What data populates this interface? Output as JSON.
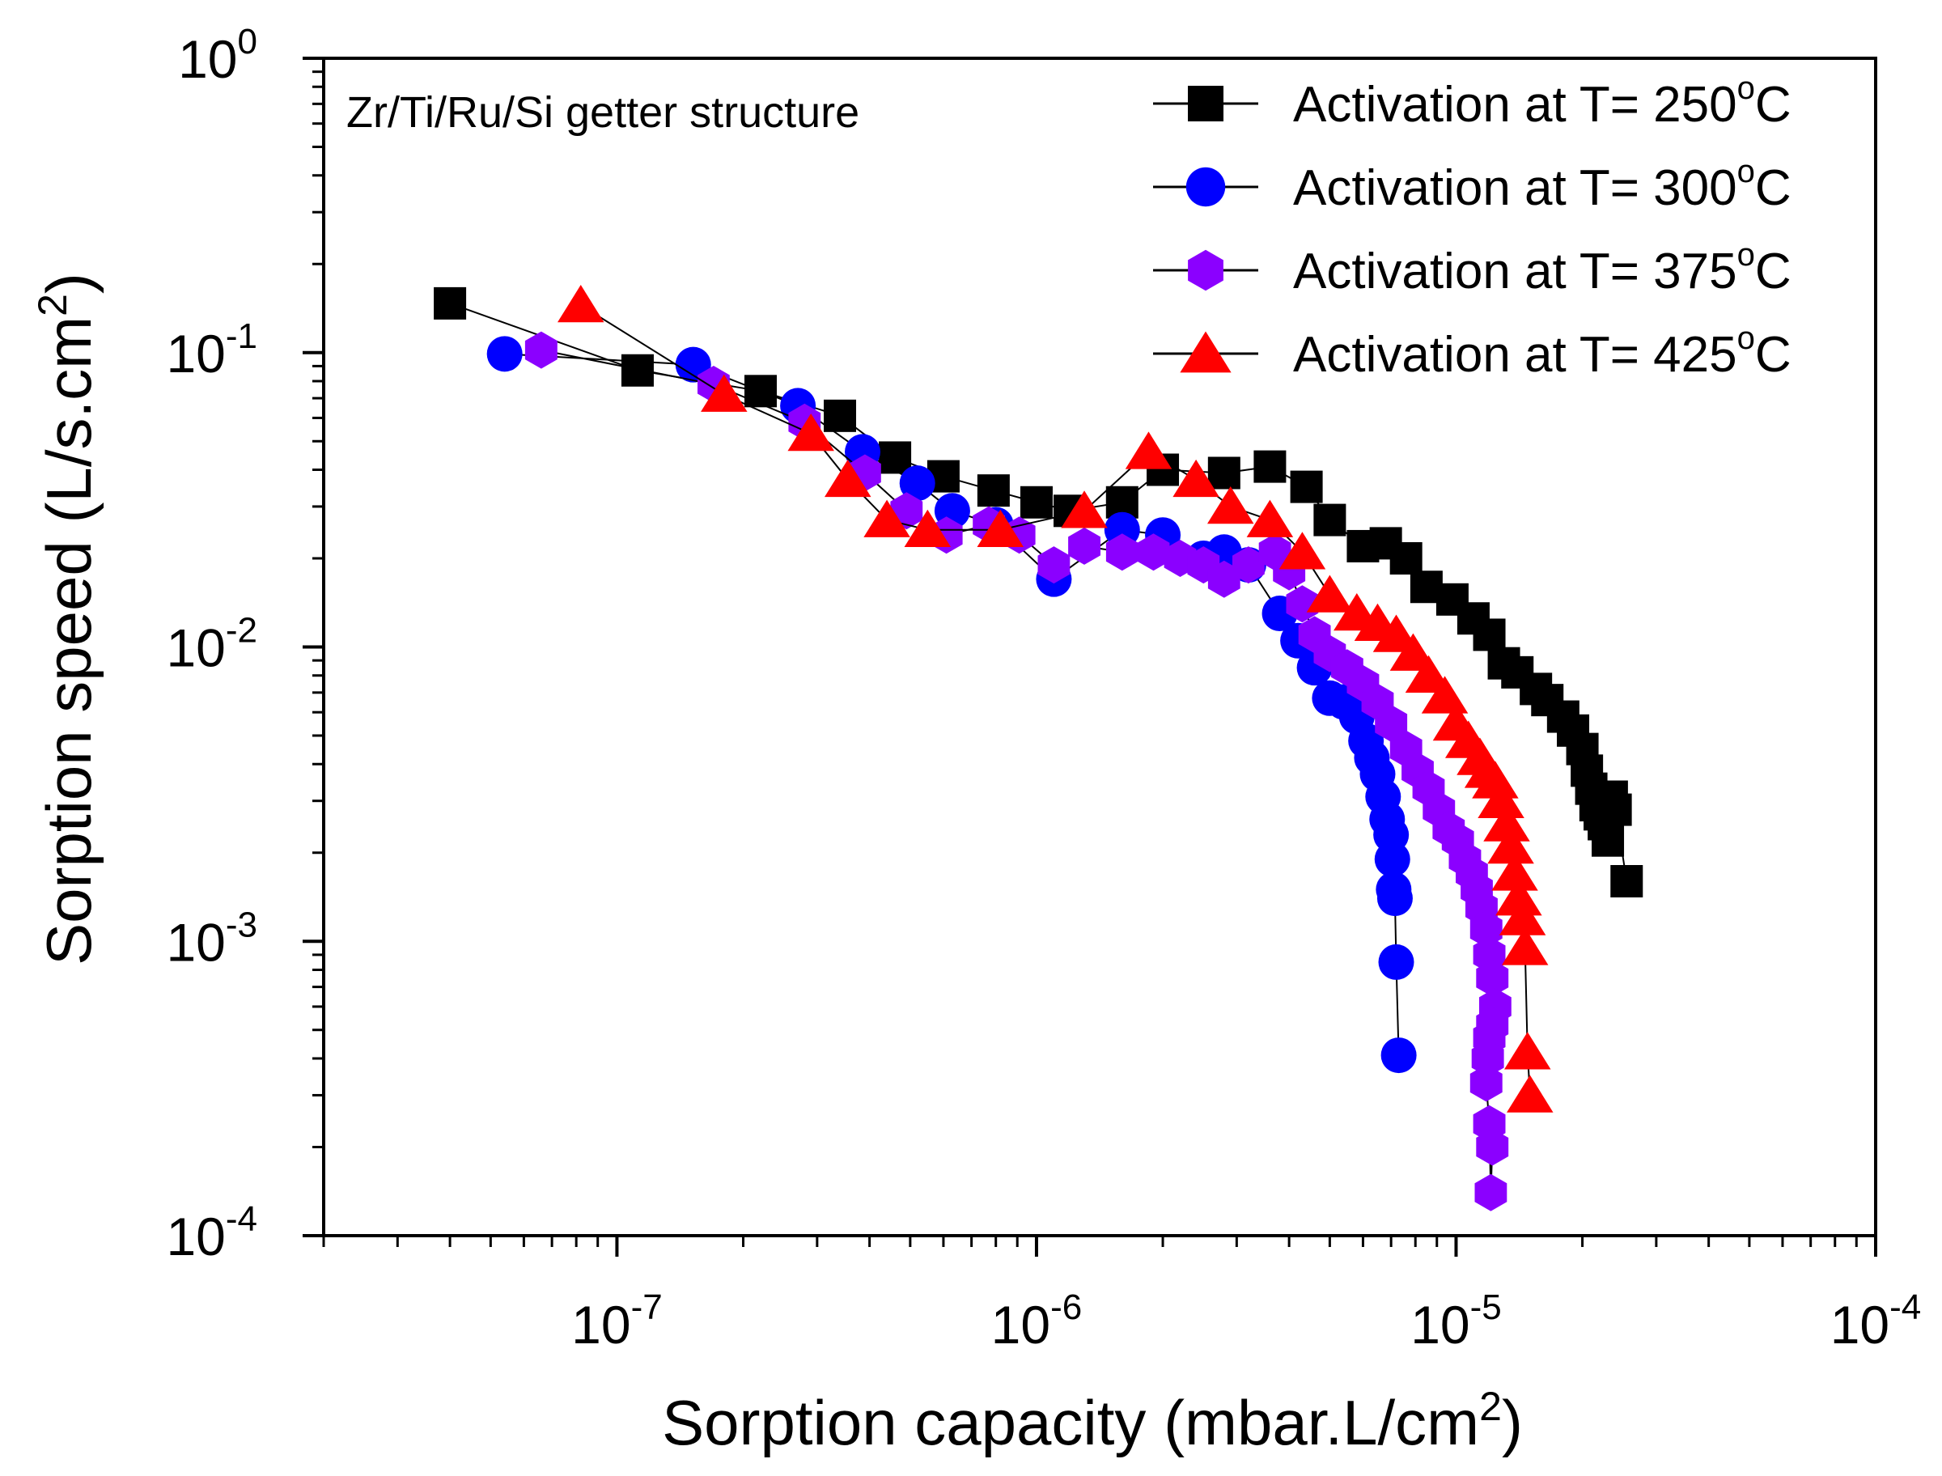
{
  "chart_data": {
    "type": "scatter",
    "title": "",
    "annotation": "Zr/Ti/Ru/Si getter structure",
    "xlabel": {
      "text": "Sorption capacity (mbar.L/cm",
      "sup": "2",
      "tail": ")"
    },
    "ylabel": {
      "text": "Sorption speed (L/s.cm",
      "sup": "2",
      "tail": ")"
    },
    "x_scale": "log",
    "y_scale": "log",
    "xlim": [
      2e-08,
      0.0001
    ],
    "ylim": [
      0.0001,
      1
    ],
    "x_ticks": [
      {
        "value": 1e-07,
        "base": "10",
        "exp": "-7"
      },
      {
        "value": 1e-06,
        "base": "10",
        "exp": "-6"
      },
      {
        "value": 1e-05,
        "base": "10",
        "exp": "-5"
      },
      {
        "value": 0.0001,
        "base": "10",
        "exp": "-4"
      }
    ],
    "y_ticks": [
      {
        "value": 1,
        "base": "10",
        "exp": "0"
      },
      {
        "value": 0.1,
        "base": "10",
        "exp": "-1"
      },
      {
        "value": 0.01,
        "base": "10",
        "exp": "-2"
      },
      {
        "value": 0.001,
        "base": "10",
        "exp": "-3"
      },
      {
        "value": 0.0001,
        "base": "10",
        "exp": "-4"
      }
    ],
    "legend_position": "top-right",
    "series": [
      {
        "name": "Activation at T= 250",
        "unit_sup": "o",
        "unit_tail": "C",
        "marker": "square",
        "color": "#000000",
        "x": [
          4e-08,
          1.12e-07,
          2.2e-07,
          3.4e-07,
          4.6e-07,
          6e-07,
          7.9e-07,
          1e-06,
          1.2e-06,
          1.6e-06,
          2e-06,
          2.8e-06,
          3.6e-06,
          4.4e-06,
          5e-06,
          6e-06,
          6.8e-06,
          7.6e-06,
          8.5e-06,
          9.8e-06,
          1.1e-05,
          1.2e-05,
          1.3e-05,
          1.4e-05,
          1.55e-05,
          1.65e-05,
          1.8e-05,
          1.9e-05,
          2e-05,
          2.05e-05,
          2.1e-05,
          2.15e-05,
          2.2e-05,
          2.25e-05,
          2.3e-05,
          2.35e-05,
          2.4e-05,
          2.55e-05
        ],
        "y": [
          0.147,
          0.087,
          0.074,
          0.061,
          0.044,
          0.038,
          0.034,
          0.031,
          0.029,
          0.031,
          0.04,
          0.039,
          0.041,
          0.035,
          0.027,
          0.022,
          0.0225,
          0.02,
          0.016,
          0.0145,
          0.0125,
          0.011,
          0.0088,
          0.0082,
          0.0072,
          0.0066,
          0.0058,
          0.0052,
          0.0045,
          0.0038,
          0.0033,
          0.0029,
          0.0027,
          0.0025,
          0.0022,
          0.0031,
          0.0028,
          0.0016
        ]
      },
      {
        "name": "Activation at T= 300",
        "unit_sup": "o",
        "unit_tail": "C",
        "marker": "circle",
        "color": "#0000ff",
        "x": [
          5.4e-08,
          1.52e-07,
          2.7e-07,
          3.85e-07,
          5.2e-07,
          6.3e-07,
          8e-07,
          1.1e-06,
          1.6e-06,
          2e-06,
          2.5e-06,
          2.8e-06,
          3.2e-06,
          3.8e-06,
          4.2e-06,
          4.6e-06,
          5e-06,
          5.4e-06,
          5.8e-06,
          6.1e-06,
          6.3e-06,
          6.5e-06,
          6.7e-06,
          6.85e-06,
          7e-06,
          7.05e-06,
          7.1e-06,
          7.15e-06,
          7.2e-06,
          7.3e-06
        ],
        "y": [
          0.099,
          0.091,
          0.066,
          0.046,
          0.036,
          0.029,
          0.026,
          0.017,
          0.025,
          0.024,
          0.02,
          0.021,
          0.019,
          0.013,
          0.0105,
          0.0085,
          0.0067,
          0.0065,
          0.0058,
          0.0048,
          0.0042,
          0.0037,
          0.0031,
          0.0026,
          0.0023,
          0.0019,
          0.0015,
          0.0014,
          0.00085,
          0.00041
        ]
      },
      {
        "name": "Activation at T= 375",
        "unit_sup": "o",
        "unit_tail": "C",
        "marker": "hexagon",
        "color": "#8b00ff",
        "x": [
          6.6e-08,
          1.7e-07,
          2.8e-07,
          3.9e-07,
          4.9e-07,
          6.1e-07,
          7.7e-07,
          9.1e-07,
          1.1e-06,
          1.3e-06,
          1.6e-06,
          1.9e-06,
          2.2e-06,
          2.5e-06,
          2.8e-06,
          3.2e-06,
          3.7e-06,
          4e-06,
          4.3e-06,
          4.6e-06,
          5e-06,
          5.5e-06,
          6e-06,
          6.5e-06,
          7e-06,
          7.6e-06,
          8.1e-06,
          8.6e-06,
          9.1e-06,
          9.6e-06,
          1.01e-05,
          1.05e-05,
          1.09e-05,
          1.12e-05,
          1.15e-05,
          1.18e-05,
          1.2e-05,
          1.22e-05,
          1.24e-05,
          1.22e-05,
          1.2e-05,
          1.19e-05,
          1.18e-05,
          1.2e-05,
          1.21e-05,
          1.22e-05
        ],
        "y": [
          0.102,
          0.078,
          0.058,
          0.039,
          0.029,
          0.024,
          0.026,
          0.024,
          0.019,
          0.022,
          0.021,
          0.021,
          0.02,
          0.019,
          0.017,
          0.019,
          0.021,
          0.018,
          0.014,
          0.011,
          0.0095,
          0.0085,
          0.0075,
          0.0065,
          0.0055,
          0.0045,
          0.0038,
          0.0033,
          0.0028,
          0.0024,
          0.0022,
          0.0019,
          0.0017,
          0.0015,
          0.0013,
          0.0011,
          0.0009,
          0.00075,
          0.0006,
          0.00052,
          0.00047,
          0.0004,
          0.00033,
          0.00024,
          0.00014,
          0.0002
        ]
      },
      {
        "name": "Activation at T= 425",
        "unit_sup": "o",
        "unit_tail": "C",
        "marker": "triangle",
        "color": "#ff0000",
        "x": [
          8.2e-08,
          1.8e-07,
          2.9e-07,
          3.55e-07,
          4.4e-07,
          5.5e-07,
          8.2e-07,
          1.3e-06,
          1.85e-06,
          2.4e-06,
          2.9e-06,
          3.6e-06,
          4.3e-06,
          5e-06,
          5.8e-06,
          6.5e-06,
          7.2e-06,
          7.9e-06,
          8.6e-06,
          9.4e-06,
          1e-05,
          1.07e-05,
          1.14e-05,
          1.19e-05,
          1.24e-05,
          1.28e-05,
          1.32e-05,
          1.35e-05,
          1.38e-05,
          1.41e-05,
          1.44e-05,
          1.46e-05,
          1.48e-05,
          1.5e-05
        ],
        "y": [
          0.145,
          0.072,
          0.053,
          0.037,
          0.027,
          0.025,
          0.025,
          0.029,
          0.046,
          0.037,
          0.03,
          0.027,
          0.021,
          0.015,
          0.013,
          0.012,
          0.011,
          0.0095,
          0.008,
          0.0068,
          0.0055,
          0.0048,
          0.0042,
          0.0038,
          0.0035,
          0.003,
          0.0025,
          0.0021,
          0.0017,
          0.0014,
          0.0012,
          0.00095,
          0.00042,
          0.0003
        ]
      }
    ]
  }
}
